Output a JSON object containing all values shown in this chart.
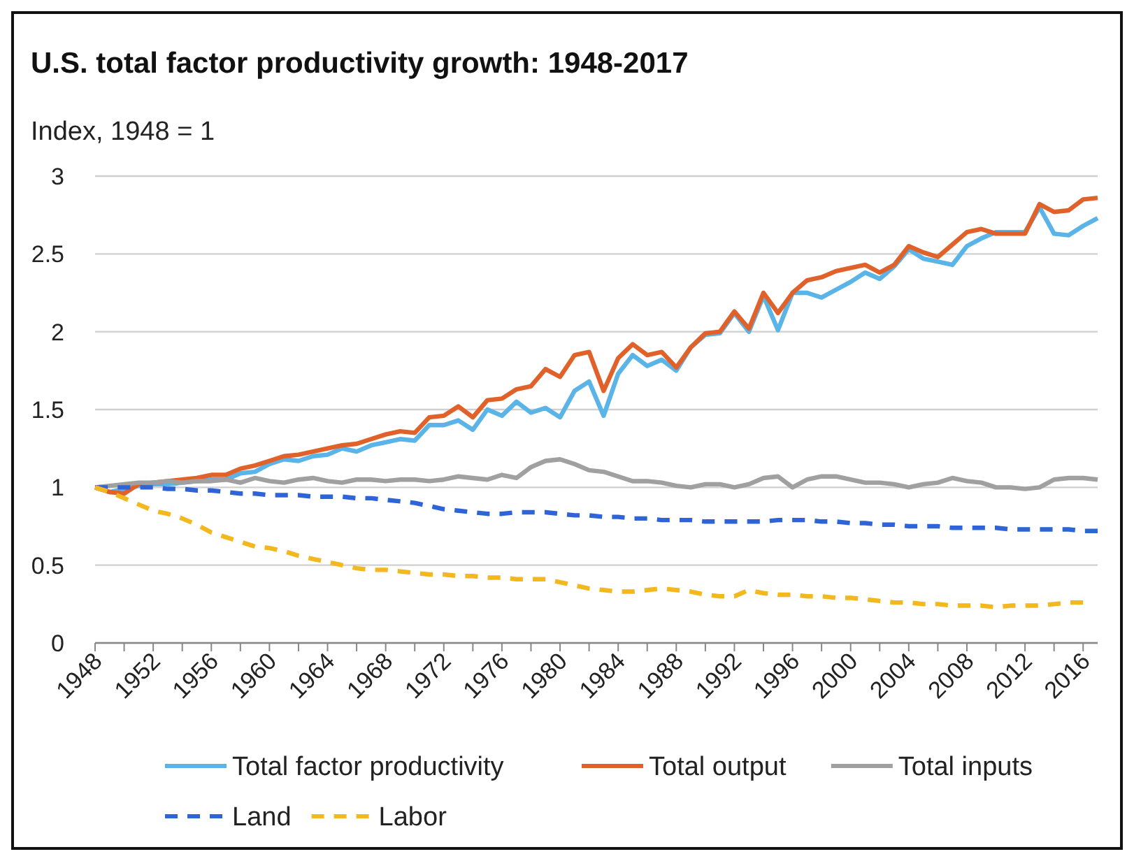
{
  "chart_data": {
    "type": "line",
    "title": "U.S. total factor productivity growth: 1948-2017",
    "ylabel": "Index, 1948 = 1",
    "x": [
      1948,
      1949,
      1950,
      1951,
      1952,
      1953,
      1954,
      1955,
      1956,
      1957,
      1958,
      1959,
      1960,
      1961,
      1962,
      1963,
      1964,
      1965,
      1966,
      1967,
      1968,
      1969,
      1970,
      1971,
      1972,
      1973,
      1974,
      1975,
      1976,
      1977,
      1978,
      1979,
      1980,
      1981,
      1982,
      1983,
      1984,
      1985,
      1986,
      1987,
      1988,
      1989,
      1990,
      1991,
      1992,
      1993,
      1994,
      1995,
      1996,
      1997,
      1998,
      1999,
      2000,
      2001,
      2002,
      2003,
      2004,
      2005,
      2006,
      2007,
      2008,
      2009,
      2010,
      2011,
      2012,
      2013,
      2014,
      2015,
      2016,
      2017
    ],
    "series": [
      {
        "name": "Total factor productivity",
        "color": "#5ab4e8",
        "line_style": "solid",
        "values": [
          1.0,
          0.97,
          0.99,
          1.01,
          1.02,
          1.02,
          1.03,
          1.04,
          1.05,
          1.05,
          1.09,
          1.1,
          1.15,
          1.18,
          1.17,
          1.2,
          1.21,
          1.25,
          1.23,
          1.27,
          1.29,
          1.31,
          1.3,
          1.4,
          1.4,
          1.43,
          1.37,
          1.5,
          1.46,
          1.55,
          1.48,
          1.51,
          1.45,
          1.62,
          1.68,
          1.46,
          1.73,
          1.85,
          1.78,
          1.82,
          1.75,
          1.9,
          1.98,
          1.99,
          2.12,
          2.0,
          2.23,
          2.01,
          2.25,
          2.25,
          2.22,
          2.27,
          2.32,
          2.38,
          2.34,
          2.42,
          2.53,
          2.47,
          2.45,
          2.43,
          2.55,
          2.6,
          2.64,
          2.64,
          2.64,
          2.8,
          2.63,
          2.62,
          2.68,
          2.73
        ]
      },
      {
        "name": "Total output",
        "color": "#e0622a",
        "line_style": "solid",
        "values": [
          1.0,
          0.97,
          0.96,
          1.02,
          1.03,
          1.04,
          1.05,
          1.06,
          1.08,
          1.08,
          1.12,
          1.14,
          1.17,
          1.2,
          1.21,
          1.23,
          1.25,
          1.27,
          1.28,
          1.31,
          1.34,
          1.36,
          1.35,
          1.45,
          1.46,
          1.52,
          1.45,
          1.56,
          1.57,
          1.63,
          1.65,
          1.76,
          1.71,
          1.85,
          1.87,
          1.62,
          1.83,
          1.92,
          1.85,
          1.87,
          1.77,
          1.9,
          1.99,
          2.0,
          2.13,
          2.02,
          2.25,
          2.12,
          2.25,
          2.33,
          2.35,
          2.39,
          2.41,
          2.43,
          2.38,
          2.43,
          2.55,
          2.51,
          2.48,
          2.56,
          2.64,
          2.66,
          2.63,
          2.63,
          2.63,
          2.82,
          2.77,
          2.78,
          2.85,
          2.86
        ]
      },
      {
        "name": "Total inputs",
        "color": "#a0a0a0",
        "line_style": "solid",
        "values": [
          1.0,
          1.01,
          1.02,
          1.03,
          1.03,
          1.04,
          1.03,
          1.04,
          1.04,
          1.05,
          1.03,
          1.06,
          1.04,
          1.03,
          1.05,
          1.06,
          1.04,
          1.03,
          1.05,
          1.05,
          1.04,
          1.05,
          1.05,
          1.04,
          1.05,
          1.07,
          1.06,
          1.05,
          1.08,
          1.06,
          1.13,
          1.17,
          1.18,
          1.15,
          1.11,
          1.1,
          1.07,
          1.04,
          1.04,
          1.03,
          1.01,
          1.0,
          1.02,
          1.02,
          1.0,
          1.02,
          1.06,
          1.07,
          1.0,
          1.05,
          1.07,
          1.07,
          1.05,
          1.03,
          1.03,
          1.02,
          1.0,
          1.02,
          1.03,
          1.06,
          1.04,
          1.03,
          1.0,
          1.0,
          0.99,
          1.0,
          1.05,
          1.06,
          1.06,
          1.05
        ]
      },
      {
        "name": "Land",
        "color": "#2e64d8",
        "line_style": "dashed",
        "values": [
          1.0,
          1.0,
          1.0,
          1.0,
          1.0,
          0.99,
          0.99,
          0.98,
          0.98,
          0.97,
          0.96,
          0.96,
          0.95,
          0.95,
          0.95,
          0.94,
          0.94,
          0.94,
          0.93,
          0.93,
          0.92,
          0.91,
          0.9,
          0.88,
          0.86,
          0.85,
          0.84,
          0.83,
          0.83,
          0.84,
          0.84,
          0.84,
          0.83,
          0.82,
          0.82,
          0.81,
          0.81,
          0.8,
          0.8,
          0.79,
          0.79,
          0.79,
          0.78,
          0.78,
          0.78,
          0.78,
          0.78,
          0.79,
          0.79,
          0.79,
          0.78,
          0.78,
          0.77,
          0.77,
          0.76,
          0.76,
          0.75,
          0.75,
          0.75,
          0.74,
          0.74,
          0.74,
          0.74,
          0.73,
          0.73,
          0.73,
          0.73,
          0.73,
          0.72,
          0.72
        ]
      },
      {
        "name": "Labor",
        "color": "#f2b81d",
        "line_style": "dashed",
        "values": [
          1.0,
          0.97,
          0.93,
          0.89,
          0.85,
          0.83,
          0.8,
          0.76,
          0.71,
          0.68,
          0.65,
          0.62,
          0.61,
          0.59,
          0.56,
          0.54,
          0.52,
          0.5,
          0.48,
          0.47,
          0.47,
          0.46,
          0.45,
          0.44,
          0.44,
          0.43,
          0.43,
          0.42,
          0.42,
          0.41,
          0.41,
          0.41,
          0.39,
          0.37,
          0.35,
          0.34,
          0.33,
          0.33,
          0.34,
          0.35,
          0.34,
          0.33,
          0.31,
          0.3,
          0.3,
          0.34,
          0.32,
          0.31,
          0.31,
          0.3,
          0.3,
          0.29,
          0.29,
          0.28,
          0.27,
          0.26,
          0.26,
          0.25,
          0.25,
          0.24,
          0.24,
          0.24,
          0.23,
          0.24,
          0.24,
          0.24,
          0.25,
          0.26,
          0.26,
          null
        ]
      }
    ],
    "xlim": [
      1948,
      2017
    ],
    "xticks": [
      1948,
      {
        "value": 1950,
        "label": null
      },
      1952,
      {
        "value": 1954,
        "label": null
      },
      1956,
      {
        "value": 1958,
        "label": null
      },
      1960,
      {
        "value": 1962,
        "label": null
      },
      1964,
      {
        "value": 1966,
        "label": null
      },
      1968,
      {
        "value": 1970,
        "label": null
      },
      1972,
      {
        "value": 1974,
        "label": null
      },
      1976,
      {
        "value": 1978,
        "label": null
      },
      1980,
      {
        "value": 1982,
        "label": null
      },
      1984,
      {
        "value": 1986,
        "label": null
      },
      1988,
      {
        "value": 1990,
        "label": null
      },
      1992,
      {
        "value": 1994,
        "label": null
      },
      1996,
      {
        "value": 1998,
        "label": null
      },
      2000,
      {
        "value": 2002,
        "label": null
      },
      2004,
      {
        "value": 2006,
        "label": null
      },
      2008,
      {
        "value": 2010,
        "label": null
      },
      2012,
      {
        "value": 2014,
        "label": null
      },
      2016
    ],
    "ylim": [
      0,
      3
    ],
    "yticks": [
      0,
      0.5,
      1,
      1.5,
      2,
      2.5,
      3
    ],
    "grid": "y",
    "legend": "bottom",
    "marker": "none"
  }
}
